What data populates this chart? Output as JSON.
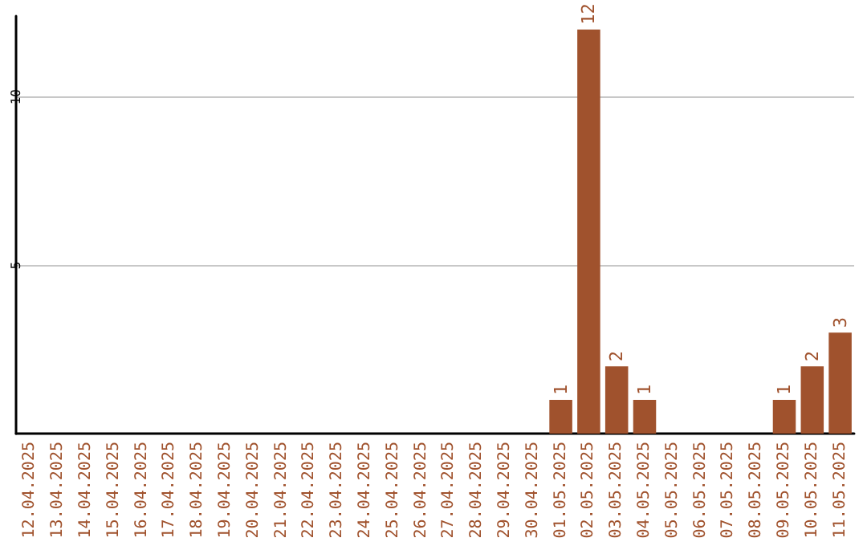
{
  "chart_data": {
    "type": "bar",
    "categories": [
      "12.04.2025",
      "13.04.2025",
      "14.04.2025",
      "15.04.2025",
      "16.04.2025",
      "17.04.2025",
      "18.04.2025",
      "19.04.2025",
      "20.04.2025",
      "21.04.2025",
      "22.04.2025",
      "23.04.2025",
      "24.04.2025",
      "25.04.2025",
      "26.04.2025",
      "27.04.2025",
      "28.04.2025",
      "29.04.2025",
      "30.04.2025",
      "01.05.2025",
      "02.05.2025",
      "03.05.2025",
      "04.05.2025",
      "05.05.2025",
      "06.05.2025",
      "07.05.2025",
      "08.05.2025",
      "09.05.2025",
      "10.05.2025",
      "11.05.2025"
    ],
    "values": [
      0,
      0,
      0,
      0,
      0,
      0,
      0,
      0,
      0,
      0,
      0,
      0,
      0,
      0,
      0,
      0,
      0,
      0,
      0,
      1,
      12,
      2,
      1,
      0,
      0,
      0,
      0,
      1,
      2,
      3
    ],
    "value_labels": [
      null,
      null,
      null,
      null,
      null,
      null,
      null,
      null,
      null,
      null,
      null,
      null,
      null,
      null,
      null,
      null,
      null,
      null,
      null,
      "1",
      "12",
      "2",
      "1",
      null,
      null,
      null,
      null,
      "1",
      "2",
      "3"
    ],
    "color": "#a0522d",
    "ylim": [
      0,
      12.4
    ],
    "yticks": [
      5,
      10
    ],
    "grid": "y"
  }
}
